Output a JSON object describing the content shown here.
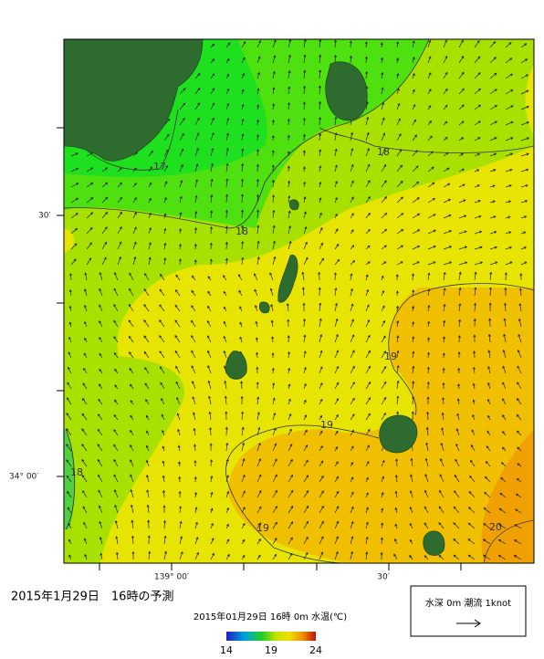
{
  "map": {
    "title": "2015年1月29日　16時の予測",
    "subtitle": "2015年01月29日 16時 0m 水温(℃)",
    "lat_labels": [
      "30′",
      "34° 00′"
    ],
    "lon_labels": [
      "139° 00′",
      "30′"
    ],
    "contour_labels": [
      17,
      18,
      18,
      19,
      19,
      19,
      18,
      20
    ],
    "colorbar_ticks": [
      14,
      19,
      24
    ],
    "legend": "水深 0m 潮流 1knot"
  }
}
